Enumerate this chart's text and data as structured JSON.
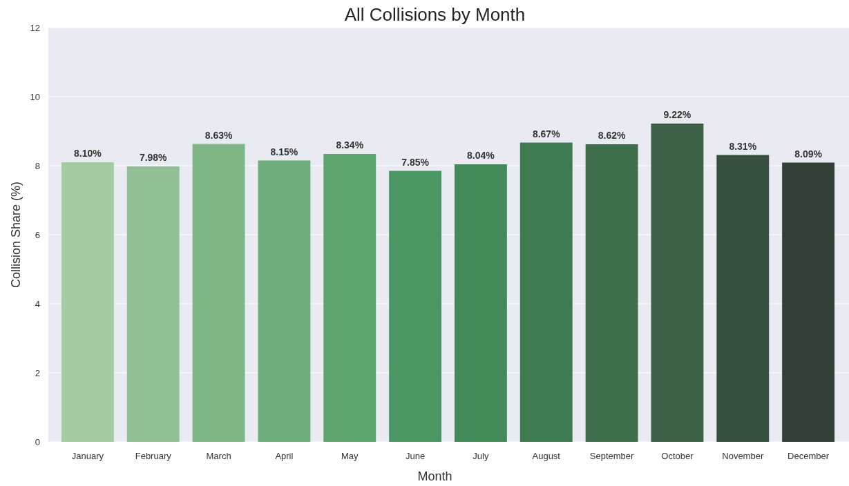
{
  "chart_data": {
    "type": "bar",
    "title": "All Collisions by Month",
    "xlabel": "Month",
    "ylabel": "Collision Share (%)",
    "categories": [
      "January",
      "February",
      "March",
      "April",
      "May",
      "June",
      "July",
      "August",
      "September",
      "October",
      "November",
      "December"
    ],
    "values": [
      8.1,
      7.98,
      8.63,
      8.15,
      8.34,
      7.85,
      8.04,
      8.67,
      8.62,
      9.22,
      8.31,
      8.09
    ],
    "value_labels": [
      "8.10%",
      "7.98%",
      "8.63%",
      "8.15%",
      "8.34%",
      "7.85%",
      "8.04%",
      "8.67%",
      "8.62%",
      "9.22%",
      "8.31%",
      "8.09%"
    ],
    "colors": [
      "#a4cba2",
      "#90c094",
      "#7fb686",
      "#6fad7d",
      "#5ea46f",
      "#4a9764",
      "#438a58",
      "#3f7b52",
      "#3e6e4b",
      "#3c6147",
      "#374f3e",
      "#333e36"
    ],
    "ylim": [
      0,
      12
    ],
    "yticks": [
      0,
      2,
      4,
      6,
      8,
      10,
      12
    ],
    "grid": "y"
  }
}
